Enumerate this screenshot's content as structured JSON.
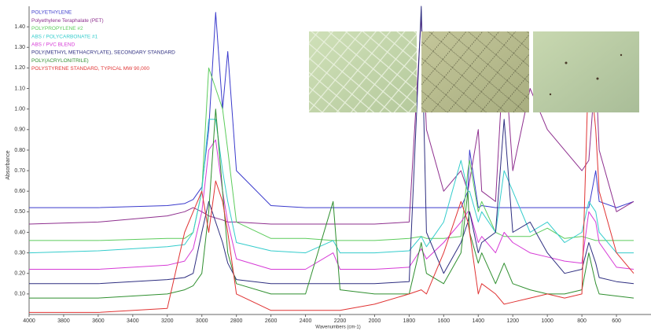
{
  "chart_data": {
    "type": "line",
    "x_label": "Wavenumbers (cm-1)",
    "y_label": "Absorbance",
    "x": [
      4000,
      3600,
      3200,
      3100,
      3050,
      3000,
      2960,
      2920,
      2880,
      2850,
      2800,
      2600,
      2400,
      2240,
      2200,
      2000,
      1800,
      1730,
      1700,
      1600,
      1500,
      1460,
      1450,
      1400,
      1380,
      1300,
      1250,
      1200,
      1100,
      1000,
      900,
      800,
      760,
      720,
      700,
      600,
      500
    ],
    "xlim": [
      4000,
      400
    ],
    "xticks": [
      4000,
      3800,
      3600,
      3400,
      3200,
      3000,
      2800,
      2600,
      2400,
      2200,
      2000,
      1800,
      1600,
      1400,
      1200,
      1000,
      800,
      600
    ],
    "ylim": [
      0,
      1.5
    ],
    "yticks": [
      {
        "value": 0.1,
        "label": "0.10"
      },
      {
        "value": 0.2,
        "label": "0.20"
      },
      {
        "value": 0.3,
        "label": "0.30"
      },
      {
        "value": 0.4,
        "label": "0.40"
      },
      {
        "value": 0.5,
        "label": "0.50"
      },
      {
        "value": 0.6,
        "label": "0.60"
      },
      {
        "value": 0.7,
        "label": "0.70"
      },
      {
        "value": 0.8,
        "label": "0.80"
      },
      {
        "value": 0.9,
        "label": "0.90"
      },
      {
        "value": 1.0,
        "label": "1.00"
      },
      {
        "value": 1.1,
        "label": "1.10"
      },
      {
        "value": 1.2,
        "label": "1.20"
      },
      {
        "value": 1.3,
        "label": "1.30"
      },
      {
        "value": 1.4,
        "label": "1.40"
      }
    ],
    "grid": false,
    "legend": "top-left",
    "series": [
      {
        "name": "POLYETHYLENE",
        "color": "#3a3acc",
        "values": [
          0.52,
          0.52,
          0.53,
          0.54,
          0.56,
          0.62,
          0.9,
          1.47,
          1.0,
          1.28,
          0.7,
          0.53,
          0.52,
          0.52,
          0.52,
          0.52,
          0.52,
          0.52,
          0.52,
          0.52,
          0.52,
          0.6,
          0.8,
          0.52,
          0.53,
          0.52,
          0.52,
          0.52,
          0.52,
          0.52,
          0.52,
          0.52,
          0.52,
          0.7,
          0.55,
          0.52,
          0.55
        ]
      },
      {
        "name": "Polyethylene Teraphalate (PET)",
        "color": "#8e2f8e",
        "values": [
          0.44,
          0.45,
          0.48,
          0.5,
          0.52,
          0.5,
          0.48,
          0.47,
          0.46,
          0.45,
          0.45,
          0.44,
          0.44,
          0.44,
          0.44,
          0.44,
          0.45,
          1.45,
          0.9,
          0.6,
          0.7,
          0.6,
          0.65,
          0.9,
          0.6,
          0.55,
          1.3,
          0.7,
          1.1,
          0.9,
          0.8,
          0.7,
          0.75,
          1.2,
          0.8,
          0.5,
          0.55
        ]
      },
      {
        "name": "POLYPROPYLENE #2",
        "color": "#5ccc5c",
        "values": [
          0.36,
          0.36,
          0.37,
          0.37,
          0.4,
          0.6,
          1.2,
          1.1,
          1.0,
          0.8,
          0.45,
          0.37,
          0.37,
          0.36,
          0.36,
          0.36,
          0.37,
          0.38,
          0.37,
          0.37,
          0.38,
          0.7,
          0.75,
          0.5,
          0.55,
          0.4,
          0.38,
          0.38,
          0.38,
          0.42,
          0.37,
          0.38,
          0.37,
          0.36,
          0.36,
          0.36,
          0.36
        ]
      },
      {
        "name": "ABS / POLYCARBONATE #1",
        "color": "#33cccc",
        "values": [
          0.3,
          0.31,
          0.33,
          0.34,
          0.4,
          0.6,
          0.95,
          0.95,
          0.7,
          0.55,
          0.35,
          0.31,
          0.3,
          0.36,
          0.3,
          0.3,
          0.31,
          0.38,
          0.33,
          0.45,
          0.75,
          0.6,
          0.6,
          0.45,
          0.5,
          0.4,
          0.7,
          0.6,
          0.4,
          0.45,
          0.35,
          0.4,
          0.55,
          0.5,
          0.4,
          0.3,
          0.3
        ]
      },
      {
        "name": "ABS / PVC BLEND",
        "color": "#d63ad6",
        "values": [
          0.22,
          0.22,
          0.24,
          0.26,
          0.32,
          0.5,
          0.8,
          0.85,
          0.6,
          0.45,
          0.27,
          0.22,
          0.22,
          0.3,
          0.22,
          0.22,
          0.23,
          0.32,
          0.27,
          0.35,
          0.45,
          0.5,
          0.5,
          0.35,
          0.38,
          0.3,
          0.4,
          0.35,
          0.3,
          0.28,
          0.26,
          0.25,
          0.5,
          0.45,
          0.35,
          0.23,
          0.22
        ]
      },
      {
        "name": "POLY(METHYL METHACRYLATE), SECONDARY STANDARD",
        "color": "#2e2e80",
        "values": [
          0.15,
          0.15,
          0.17,
          0.18,
          0.2,
          0.4,
          0.55,
          0.45,
          0.35,
          0.25,
          0.17,
          0.15,
          0.15,
          0.15,
          0.15,
          0.15,
          0.16,
          1.5,
          0.4,
          0.2,
          0.35,
          0.45,
          0.5,
          0.3,
          0.35,
          0.4,
          0.95,
          0.4,
          0.45,
          0.3,
          0.2,
          0.22,
          0.35,
          0.25,
          0.18,
          0.16,
          0.15
        ]
      },
      {
        "name": "POLY(ACRYLONITRILE)",
        "color": "#2f8f2f",
        "values": [
          0.08,
          0.08,
          0.1,
          0.12,
          0.14,
          0.2,
          0.5,
          1.0,
          0.6,
          0.3,
          0.15,
          0.1,
          0.1,
          0.55,
          0.12,
          0.1,
          0.1,
          0.35,
          0.2,
          0.15,
          0.3,
          0.6,
          0.4,
          0.25,
          0.3,
          0.15,
          0.25,
          0.15,
          0.12,
          0.1,
          0.1,
          0.12,
          0.3,
          0.15,
          0.1,
          0.09,
          0.08
        ]
      },
      {
        "name": "POLYSTYRENE STANDARD, TYPICAL MW 90,000",
        "color": "#e03333",
        "values": [
          0.01,
          0.01,
          0.03,
          0.4,
          0.5,
          0.6,
          0.4,
          0.65,
          0.55,
          0.4,
          0.1,
          0.02,
          0.02,
          0.02,
          0.02,
          0.05,
          0.1,
          0.12,
          0.1,
          0.3,
          0.55,
          0.45,
          0.4,
          0.1,
          0.15,
          0.1,
          0.05,
          0.06,
          0.08,
          0.1,
          0.08,
          0.1,
          1.25,
          0.9,
          0.6,
          0.3,
          0.2
        ]
      }
    ]
  }
}
